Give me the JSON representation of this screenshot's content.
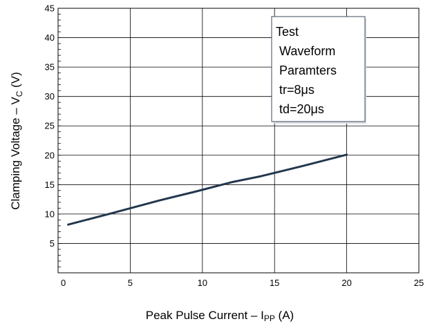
{
  "chart_data": {
    "type": "line",
    "xlabel": "Peak Pulse Current",
    "xlabel_symbol": "I",
    "xlabel_subscript": "PP",
    "xlabel_unit": " (A)",
    "ylabel": "Clamping Voltage",
    "ylabel_symbol": "V",
    "ylabel_subscript": "C",
    "ylabel_unit": " (V)",
    "xlim": [
      0,
      25
    ],
    "ylim": [
      0,
      45
    ],
    "xticks": [
      0,
      5,
      10,
      15,
      20,
      25
    ],
    "yticks": [
      5,
      10,
      15,
      20,
      25,
      30,
      35,
      40,
      45
    ],
    "grid": true,
    "legend_placement": "top-right",
    "annotation_lines": [
      "Test",
      "Waveform",
      "Paramters",
      "tr=8μs",
      "td=20μs"
    ],
    "series": [
      {
        "color": "#22374e",
        "x": [
          0.7,
          3.5,
          7,
          9.5,
          12,
          14,
          17,
          20
        ],
        "y": [
          8.2,
          10,
          12.3,
          13.8,
          15.4,
          16.4,
          18.2,
          20.1
        ]
      }
    ]
  },
  "colors": {
    "line": "#22374e",
    "grid": "#000000",
    "frame": "#000000",
    "legend_border": "#3a4a5a"
  }
}
